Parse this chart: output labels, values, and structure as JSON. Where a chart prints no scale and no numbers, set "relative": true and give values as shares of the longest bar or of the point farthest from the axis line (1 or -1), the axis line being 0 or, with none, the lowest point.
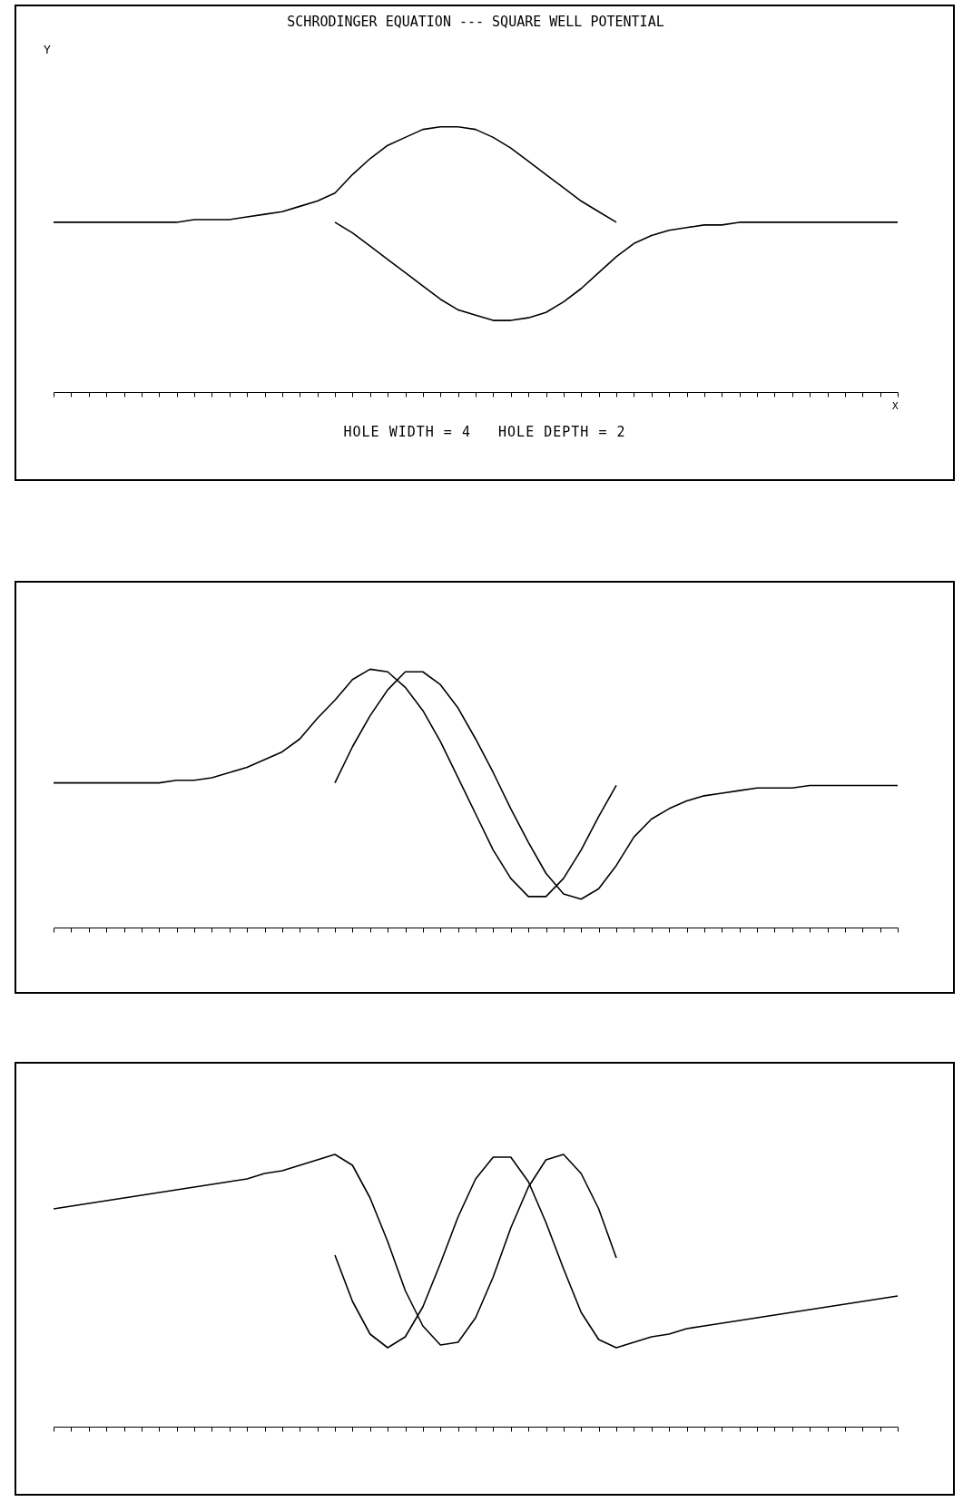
{
  "chart_data": [
    {
      "type": "line",
      "title": "SCHRODINGER EQUATION --- SQUARE WELL POTENTIAL",
      "xlabel": "X",
      "ylabel": "Y",
      "annotations": [
        "HOLE WIDTH = 4   HOLE DEPTH = 2"
      ],
      "relative": true,
      "tick_labels": false,
      "grid": false,
      "categories": [
        null,
        null,
        null,
        null,
        null,
        null,
        null,
        null,
        null,
        null,
        null,
        null,
        null,
        null,
        null,
        null,
        null,
        null,
        null,
        null,
        null,
        null,
        null,
        null,
        null,
        null,
        null,
        null,
        null,
        null,
        null,
        null,
        null,
        null,
        null,
        null,
        null,
        null,
        null,
        null,
        null,
        null,
        null,
        null,
        null,
        null,
        null,
        null,
        null
      ],
      "series": [
        {
          "color": "#000000",
          "values": [
            0.64,
            0.64,
            0.64,
            0.64,
            0.64,
            0.64,
            0.64,
            0.64,
            0.65,
            0.65,
            0.65,
            0.66,
            0.67,
            0.68,
            0.7,
            0.72,
            0.75,
            0.82,
            0.88,
            0.93,
            0.96,
            0.99,
            1.0,
            1.0,
            0.99,
            0.96,
            0.92,
            0.87,
            0.82,
            0.77,
            0.72,
            0.68,
            0.64,
            null,
            null,
            null,
            null,
            null,
            null,
            null,
            null,
            null,
            null,
            null,
            null,
            null,
            null,
            null,
            null
          ]
        },
        {
          "color": "#000000",
          "values": [
            null,
            null,
            null,
            null,
            null,
            null,
            null,
            null,
            null,
            null,
            null,
            null,
            null,
            null,
            null,
            null,
            0.64,
            0.6,
            0.55,
            0.5,
            0.45,
            0.4,
            0.35,
            0.31,
            0.29,
            0.27,
            0.27,
            0.28,
            0.3,
            0.34,
            0.39,
            0.45,
            0.51,
            0.56,
            0.59,
            0.61,
            0.62,
            0.63,
            0.63,
            0.64,
            0.64,
            0.64,
            0.64,
            0.64,
            0.64,
            0.64,
            0.64,
            0.64,
            0.64
          ]
        }
      ]
    },
    {
      "type": "line",
      "relative": true,
      "tick_labels": false,
      "grid": false,
      "categories": [
        null,
        null,
        null,
        null,
        null,
        null,
        null,
        null,
        null,
        null,
        null,
        null,
        null,
        null,
        null,
        null,
        null,
        null,
        null,
        null,
        null,
        null,
        null,
        null,
        null,
        null,
        null,
        null,
        null,
        null,
        null,
        null,
        null,
        null,
        null,
        null,
        null,
        null,
        null,
        null,
        null,
        null,
        null,
        null,
        null,
        null,
        null,
        null,
        null
      ],
      "series": [
        {
          "color": "#000000",
          "values": [
            0.56,
            0.56,
            0.56,
            0.56,
            0.56,
            0.56,
            0.56,
            0.57,
            0.57,
            0.58,
            0.6,
            0.62,
            0.65,
            0.68,
            0.73,
            0.81,
            0.88,
            0.96,
            1.0,
            0.99,
            0.93,
            0.84,
            0.72,
            0.58,
            0.44,
            0.3,
            0.19,
            0.12,
            0.12,
            0.19,
            0.3,
            0.43,
            0.55,
            null,
            null,
            null,
            null,
            null,
            null,
            null,
            null,
            null,
            null,
            null,
            null,
            null,
            null,
            null,
            null
          ]
        },
        {
          "color": "#000000",
          "values": [
            null,
            null,
            null,
            null,
            null,
            null,
            null,
            null,
            null,
            null,
            null,
            null,
            null,
            null,
            null,
            null,
            0.56,
            0.7,
            0.82,
            0.92,
            0.99,
            0.99,
            0.94,
            0.85,
            0.73,
            0.6,
            0.46,
            0.33,
            0.21,
            0.13,
            0.11,
            0.15,
            0.24,
            0.35,
            0.42,
            0.46,
            0.49,
            0.51,
            0.52,
            0.53,
            0.54,
            0.54,
            0.54,
            0.55,
            0.55,
            0.55,
            0.55,
            0.55,
            0.55
          ]
        }
      ]
    },
    {
      "type": "line",
      "relative": true,
      "tick_labels": false,
      "grid": false,
      "categories": [
        null,
        null,
        null,
        null,
        null,
        null,
        null,
        null,
        null,
        null,
        null,
        null,
        null,
        null,
        null,
        null,
        null,
        null,
        null,
        null,
        null,
        null,
        null,
        null,
        null,
        null,
        null,
        null,
        null,
        null,
        null,
        null,
        null,
        null,
        null,
        null,
        null,
        null,
        null,
        null,
        null,
        null,
        null,
        null,
        null,
        null,
        null,
        null,
        null
      ],
      "series": [
        {
          "color": "#000000",
          "values": [
            0.8,
            0.81,
            0.82,
            0.83,
            0.84,
            0.85,
            0.86,
            0.87,
            0.88,
            0.89,
            0.9,
            0.91,
            0.93,
            0.94,
            0.96,
            0.98,
            1.0,
            0.96,
            0.84,
            0.68,
            0.5,
            0.37,
            0.3,
            0.31,
            0.4,
            0.55,
            0.73,
            0.88,
            0.98,
            1.0,
            0.93,
            0.8,
            0.62,
            null,
            null,
            null,
            null,
            null,
            null,
            null,
            null,
            null,
            null,
            null,
            null,
            null,
            null,
            null,
            null
          ]
        },
        {
          "color": "#000000",
          "values": [
            null,
            null,
            null,
            null,
            null,
            null,
            null,
            null,
            null,
            null,
            null,
            null,
            null,
            null,
            null,
            null,
            0.63,
            0.46,
            0.34,
            0.29,
            0.33,
            0.44,
            0.6,
            0.77,
            0.91,
            0.99,
            0.99,
            0.9,
            0.75,
            0.58,
            0.42,
            0.32,
            0.29,
            0.31,
            0.33,
            0.34,
            0.36,
            0.37,
            0.38,
            0.39,
            0.4,
            0.41,
            0.42,
            0.43,
            0.44,
            0.45,
            0.46,
            0.47,
            0.48
          ]
        }
      ]
    }
  ]
}
